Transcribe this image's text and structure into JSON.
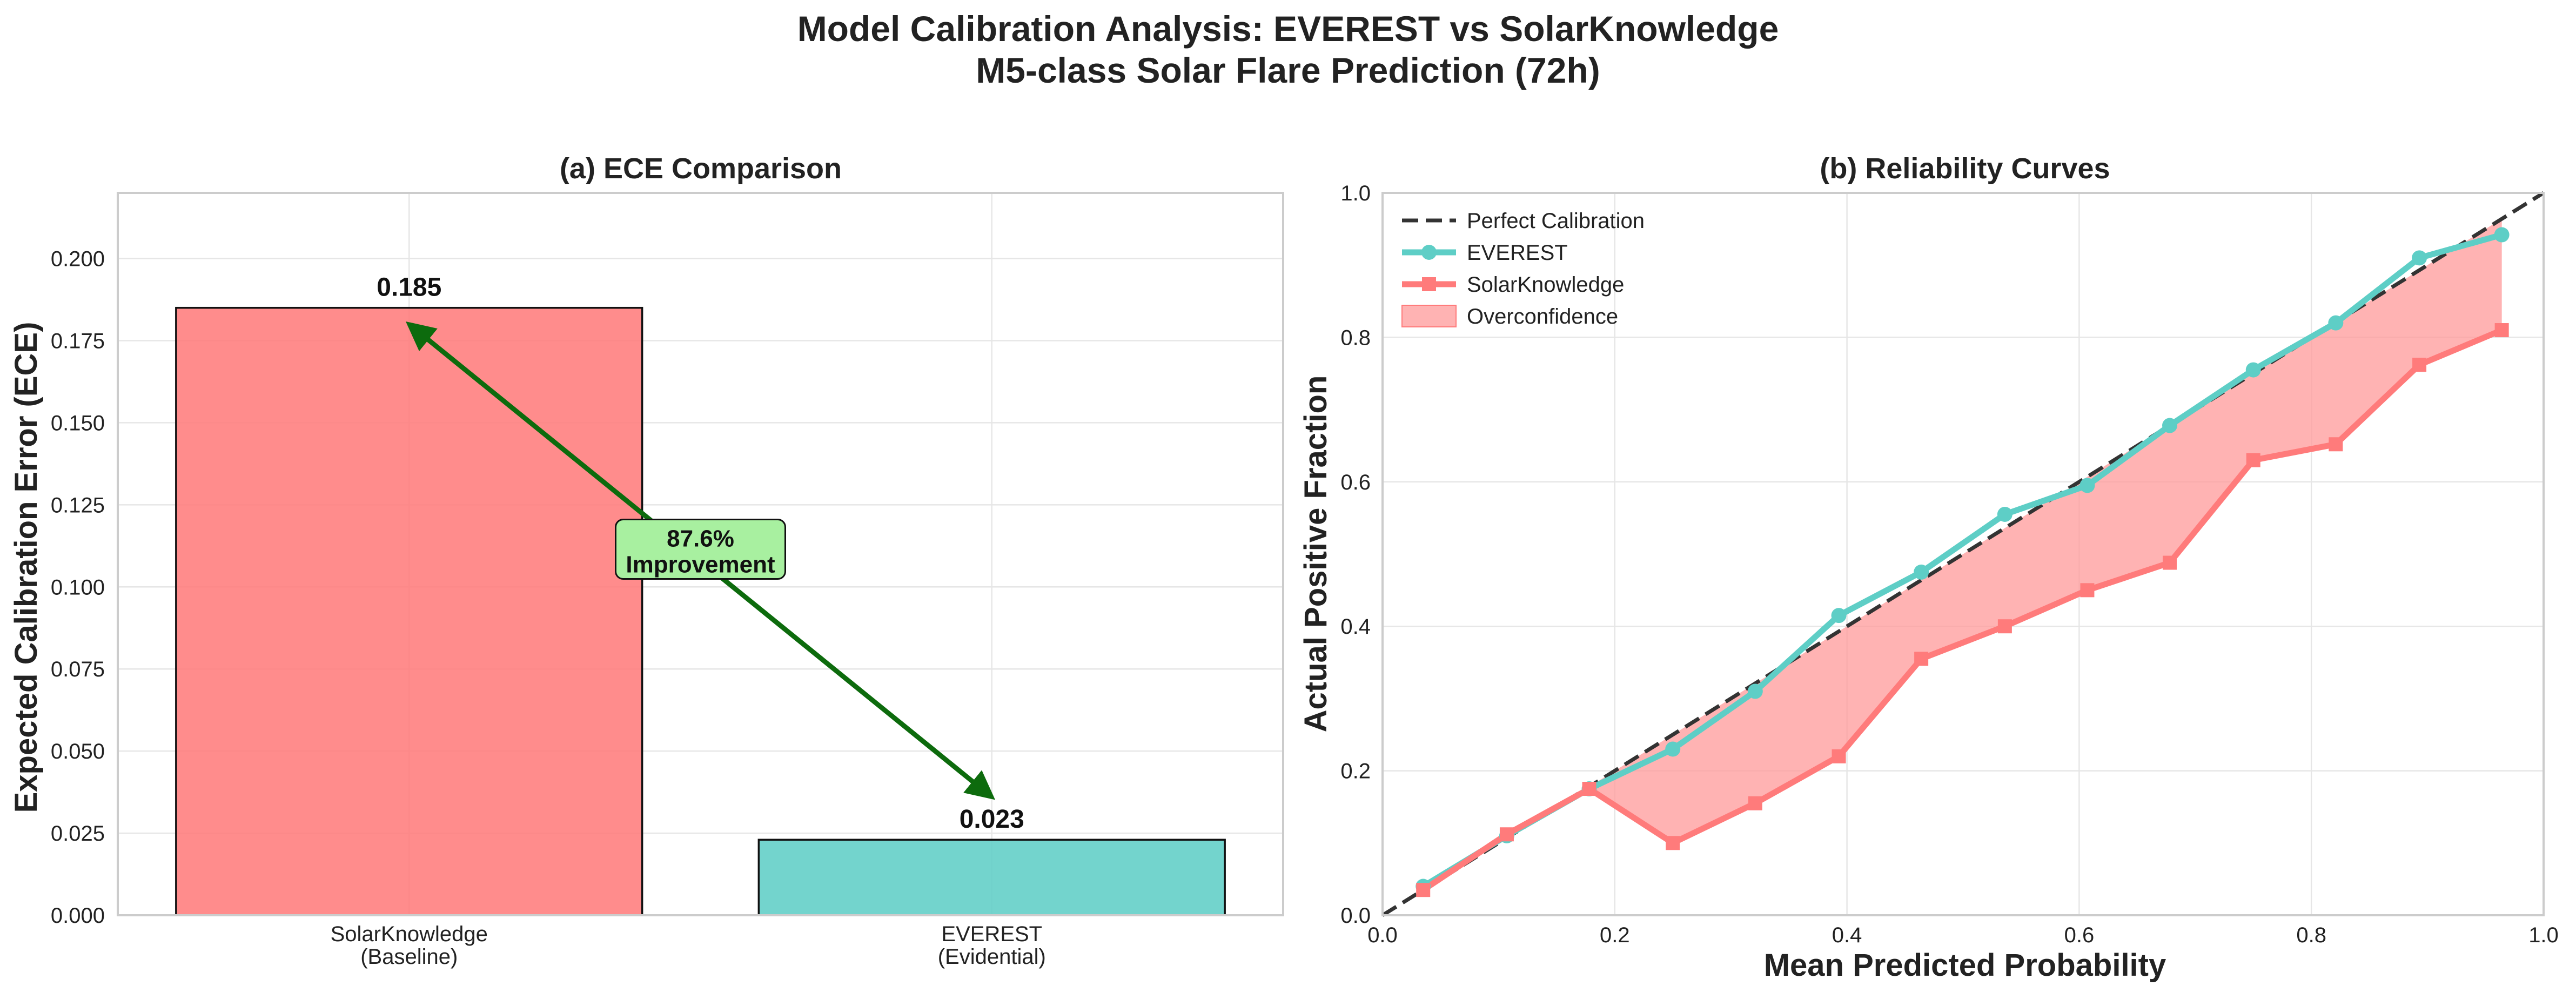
{
  "figure": {
    "title_line1": "Model Calibration Analysis: EVEREST vs SolarKnowledge",
    "title_line2": "M5-class Solar Flare Prediction (72h)"
  },
  "colors": {
    "solarknowledge": "#ff7b7b",
    "everest": "#5ecec6",
    "perfect": "#333333",
    "arrow": "#0d6b0d",
    "improvement_box": "#a8f0a0",
    "overconfidence": "#ff9a9a"
  },
  "chart_data": [
    {
      "type": "bar",
      "title": "(a) ECE Comparison",
      "xlabel": "",
      "ylabel": "Expected Calibration Error (ECE)",
      "categories": [
        [
          "SolarKnowledge",
          "(Baseline)"
        ],
        [
          "EVEREST",
          "(Evidential)"
        ]
      ],
      "values": [
        0.185,
        0.023
      ],
      "value_labels": [
        "0.185",
        "0.023"
      ],
      "ylim": [
        0,
        0.22
      ],
      "yticks": [
        "0.000",
        "0.025",
        "0.050",
        "0.075",
        "0.100",
        "0.125",
        "0.150",
        "0.175",
        "0.200"
      ],
      "grid": true,
      "annotation": {
        "line1": "87.6%",
        "line2": "Improvement",
        "arrow_from": {
          "category": 0,
          "value": 0.18
        },
        "arrow_to": {
          "category": 1,
          "value": 0.036
        },
        "text_at": {
          "category": 0.5,
          "value": 0.11
        }
      }
    },
    {
      "type": "line",
      "title": "(b) Reliability Curves",
      "xlabel": "Mean Predicted Probability",
      "ylabel": "Actual Positive Fraction",
      "xlim": [
        0,
        1
      ],
      "ylim": [
        0,
        1
      ],
      "xticks": [
        "0.0",
        "0.2",
        "0.4",
        "0.6",
        "0.8",
        "1.0"
      ],
      "yticks": [
        "0.0",
        "0.2",
        "0.4",
        "0.6",
        "0.8",
        "1.0"
      ],
      "grid": true,
      "legend_position": "top-left",
      "x": [
        0.035,
        0.107,
        0.178,
        0.25,
        0.321,
        0.393,
        0.464,
        0.536,
        0.607,
        0.678,
        0.75,
        0.821,
        0.893,
        0.964
      ],
      "series": [
        {
          "name": "Perfect Calibration",
          "style": "dashed",
          "x": [
            0,
            1
          ],
          "values": [
            0,
            1
          ]
        },
        {
          "name": "EVEREST",
          "marker": "circle",
          "values": [
            0.04,
            0.11,
            0.175,
            0.23,
            0.31,
            0.415,
            0.475,
            0.555,
            0.595,
            0.678,
            0.755,
            0.82,
            0.91,
            0.942
          ]
        },
        {
          "name": "SolarKnowledge",
          "marker": "square",
          "values": [
            0.035,
            0.112,
            0.175,
            0.1,
            0.155,
            0.22,
            0.355,
            0.4,
            0.45,
            0.488,
            0.63,
            0.652,
            0.762,
            0.81
          ]
        }
      ],
      "fill": {
        "name": "Overconfidence",
        "between": [
          "Perfect Calibration",
          "SolarKnowledge"
        ]
      }
    }
  ]
}
